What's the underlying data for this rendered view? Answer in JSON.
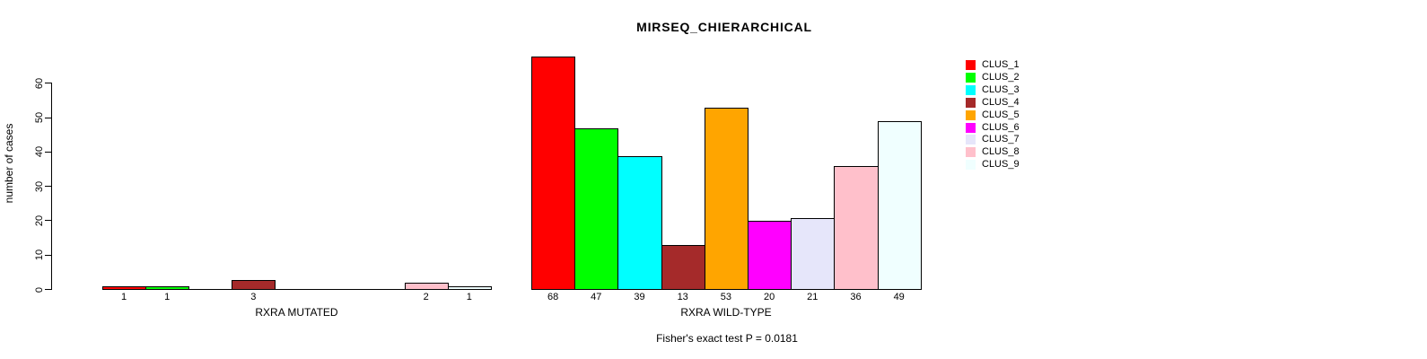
{
  "chart_data": {
    "type": "bar",
    "title": "MIRSEQ_CHIERARCHICAL",
    "ylabel": "number of cases",
    "xlabel": "",
    "ylim": [
      0,
      60
    ],
    "yticks": [
      0,
      10,
      20,
      30,
      40,
      50,
      60
    ],
    "grid": false,
    "bar_border_color": "#000000",
    "legend_position": "right",
    "clusters": [
      "CLUS_1",
      "CLUS_2",
      "CLUS_3",
      "CLUS_4",
      "CLUS_5",
      "CLUS_6",
      "CLUS_7",
      "CLUS_8",
      "CLUS_9"
    ],
    "colors": [
      "#FF0000",
      "#00FF00",
      "#00FFFF",
      "#A52A2A",
      "#FFA500",
      "#FF00FF",
      "#E6E6FA",
      "#FFC0CB",
      "#F0FFFF"
    ],
    "groups": [
      {
        "label": "RXRA MUTATED",
        "values": [
          1,
          1,
          0,
          3,
          0,
          0,
          0,
          2,
          1
        ]
      },
      {
        "label": "RXRA WILD-TYPE",
        "values": [
          68,
          47,
          39,
          13,
          53,
          20,
          21,
          36,
          49
        ]
      }
    ],
    "annotation": "Fisher's exact test P = 0.0181"
  }
}
